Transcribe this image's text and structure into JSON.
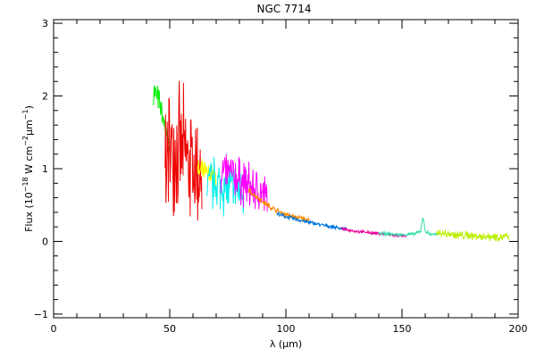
{
  "chart_data": {
    "type": "line",
    "title": "NGC 7714",
    "xlabel": {
      "main": "λ (μm)"
    },
    "ylabel": {
      "prefix": "Flux (10",
      "exp1": "−18",
      "mid": " W cm",
      "exp2": "−2",
      "mid2": "μm",
      "exp3": "−1",
      "suffix": ")"
    },
    "xlim": [
      0,
      200
    ],
    "ylim": [
      -1.05,
      3.05
    ],
    "xticks": [
      0,
      50,
      100,
      150,
      200
    ],
    "xtick_labels": [
      "0",
      "50",
      "100",
      "150",
      "200"
    ],
    "yticks": [
      -1,
      0,
      1,
      2,
      3
    ],
    "ytick_labels": [
      "−1",
      "0",
      "1",
      "2",
      "3"
    ],
    "xminor_step": 10,
    "yminor_step": 0.2,
    "grid": false,
    "series": [
      {
        "color": "#00ee00",
        "noise": 0.18,
        "x": [
          43,
          45,
          47,
          49,
          50
        ],
        "y": [
          2.1,
          1.95,
          1.7,
          1.4,
          1.2
        ]
      },
      {
        "color": "#ee0000",
        "noise": 0.75,
        "x": [
          48,
          50,
          52,
          54,
          56,
          58,
          60,
          62,
          64
        ],
        "y": [
          1.2,
          1.25,
          1.3,
          1.25,
          1.2,
          1.1,
          1.0,
          0.95,
          0.95
        ]
      },
      {
        "color": "#ffff00",
        "noise": 0.15,
        "x": [
          62,
          64,
          66,
          68,
          70
        ],
        "y": [
          0.95,
          0.95,
          0.92,
          0.9,
          0.88
        ]
      },
      {
        "color": "#00eeee",
        "noise": 0.35,
        "x": [
          66,
          70,
          74,
          78,
          82
        ],
        "y": [
          0.8,
          0.78,
          0.75,
          0.7,
          0.66
        ]
      },
      {
        "color": "#ff00ff",
        "noise": 0.3,
        "x": [
          72,
          76,
          80,
          84,
          88,
          92
        ],
        "y": [
          0.95,
          0.92,
          0.85,
          0.75,
          0.68,
          0.6
        ]
      },
      {
        "color": "#ff8800",
        "noise": 0.04,
        "x": [
          84,
          88,
          92,
          96,
          100,
          104,
          110
        ],
        "y": [
          0.7,
          0.6,
          0.5,
          0.42,
          0.37,
          0.33,
          0.3
        ]
      },
      {
        "color": "#0077dd",
        "noise": 0.025,
        "x": [
          96,
          100,
          105,
          110,
          115,
          120,
          126
        ],
        "y": [
          0.38,
          0.34,
          0.3,
          0.26,
          0.23,
          0.2,
          0.17
        ]
      },
      {
        "color": "#ee0099",
        "noise": 0.02,
        "x": [
          124,
          130,
          136,
          142,
          148,
          152
        ],
        "y": [
          0.17,
          0.14,
          0.12,
          0.1,
          0.08,
          0.07
        ]
      },
      {
        "color": "#33ddaa",
        "noise": 0.02,
        "x": [
          140,
          145,
          150,
          155,
          158,
          159,
          160,
          162,
          166
        ],
        "y": [
          0.11,
          0.1,
          0.09,
          0.1,
          0.14,
          0.35,
          0.14,
          0.1,
          0.09
        ]
      },
      {
        "color": "#bbee00",
        "noise": 0.06,
        "x": [
          165,
          170,
          175,
          180,
          185,
          190,
          196
        ],
        "y": [
          0.12,
          0.1,
          0.08,
          0.08,
          0.07,
          0.07,
          0.06
        ]
      }
    ]
  }
}
